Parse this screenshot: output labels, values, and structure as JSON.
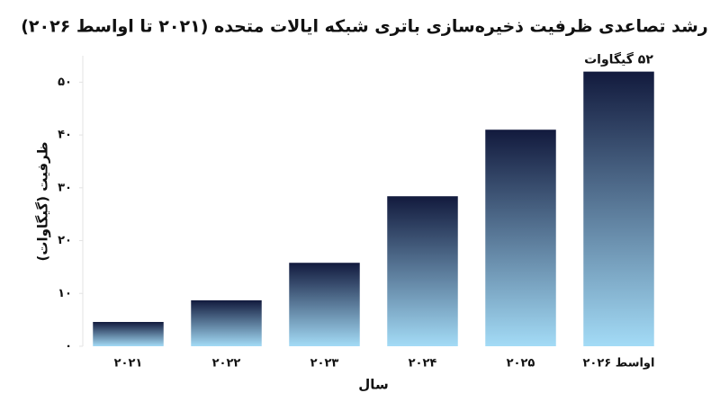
{
  "chart_data": {
    "type": "bar",
    "title": "رشد تصاعدی ظرفیت ذخیره‌سازی باتری شبکه ایالات متحده (۲۰۲۱ تا اواسط ۲۰۲۶)",
    "x_label": "سال",
    "y_label": "ظرفیت (گیگاوات)",
    "categories": [
      "۲۰۲۱",
      "۲۰۲۲",
      "۲۰۲۳",
      "۲۰۲۴",
      "۲۰۲۵",
      "اواسط ۲۰۲۶"
    ],
    "values": [
      4.6,
      8.7,
      15.8,
      28.4,
      41,
      52
    ],
    "value_labels": [
      null,
      null,
      null,
      null,
      null,
      "۵۲ گیگاوات"
    ],
    "colors": [
      "#121a3d",
      "#a3dbf6"
    ],
    "ylim": [
      0,
      55
    ],
    "yticks": [
      {
        "value": 0,
        "label": "۰"
      },
      {
        "value": 10,
        "label": "۱۰"
      },
      {
        "value": 20,
        "label": "۲۰"
      },
      {
        "value": 30,
        "label": "۳۰"
      },
      {
        "value": 40,
        "label": "۴۰"
      },
      {
        "value": 50,
        "label": "۵۰"
      }
    ],
    "grid": false
  }
}
